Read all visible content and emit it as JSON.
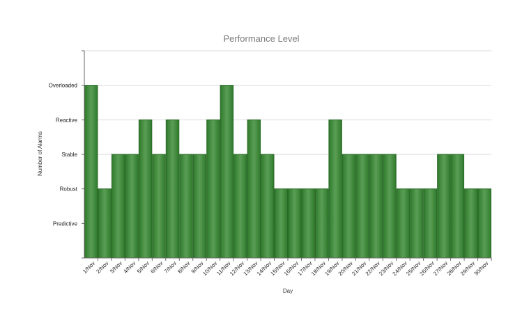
{
  "chart_data": {
    "type": "bar",
    "title": "Performance Level",
    "xlabel": "Day",
    "ylabel": "Number of Alarms",
    "categories": [
      "1/Nov",
      "2/Nov",
      "3/Nov",
      "4/Nov",
      "5/Nov",
      "6/Nov",
      "7/Nov",
      "8/Nov",
      "9/Nov",
      "10/Nov",
      "11/Nov",
      "12/Nov",
      "13/Nov",
      "14/Nov",
      "15/Nov",
      "16/Nov",
      "17/Nov",
      "18/Nov",
      "19/Nov",
      "20/Nov",
      "21/Nov",
      "22/Nov",
      "23/Nov",
      "24/Nov",
      "25/Nov",
      "26/Nov",
      "27/Nov",
      "28/Nov",
      "29/Nov",
      "30/Nov"
    ],
    "y_levels": [
      "Predictive",
      "Robust",
      "Stable",
      "Reactive",
      "Overloaded"
    ],
    "series": [
      {
        "values": [
          5,
          2,
          3,
          3,
          4,
          3,
          4,
          3,
          3,
          4,
          5,
          3,
          4,
          3,
          2,
          2,
          2,
          2,
          4,
          3,
          3,
          3,
          3,
          2,
          2,
          2,
          3,
          3,
          2,
          2
        ]
      }
    ],
    "ylim": [
      0,
      6
    ],
    "grid": true,
    "legend": "none",
    "colors": {
      "bar": "#3e8a3a",
      "bar_edge": "#2a6a27",
      "grid": "#d9d9d9",
      "axis": "#666666"
    }
  }
}
